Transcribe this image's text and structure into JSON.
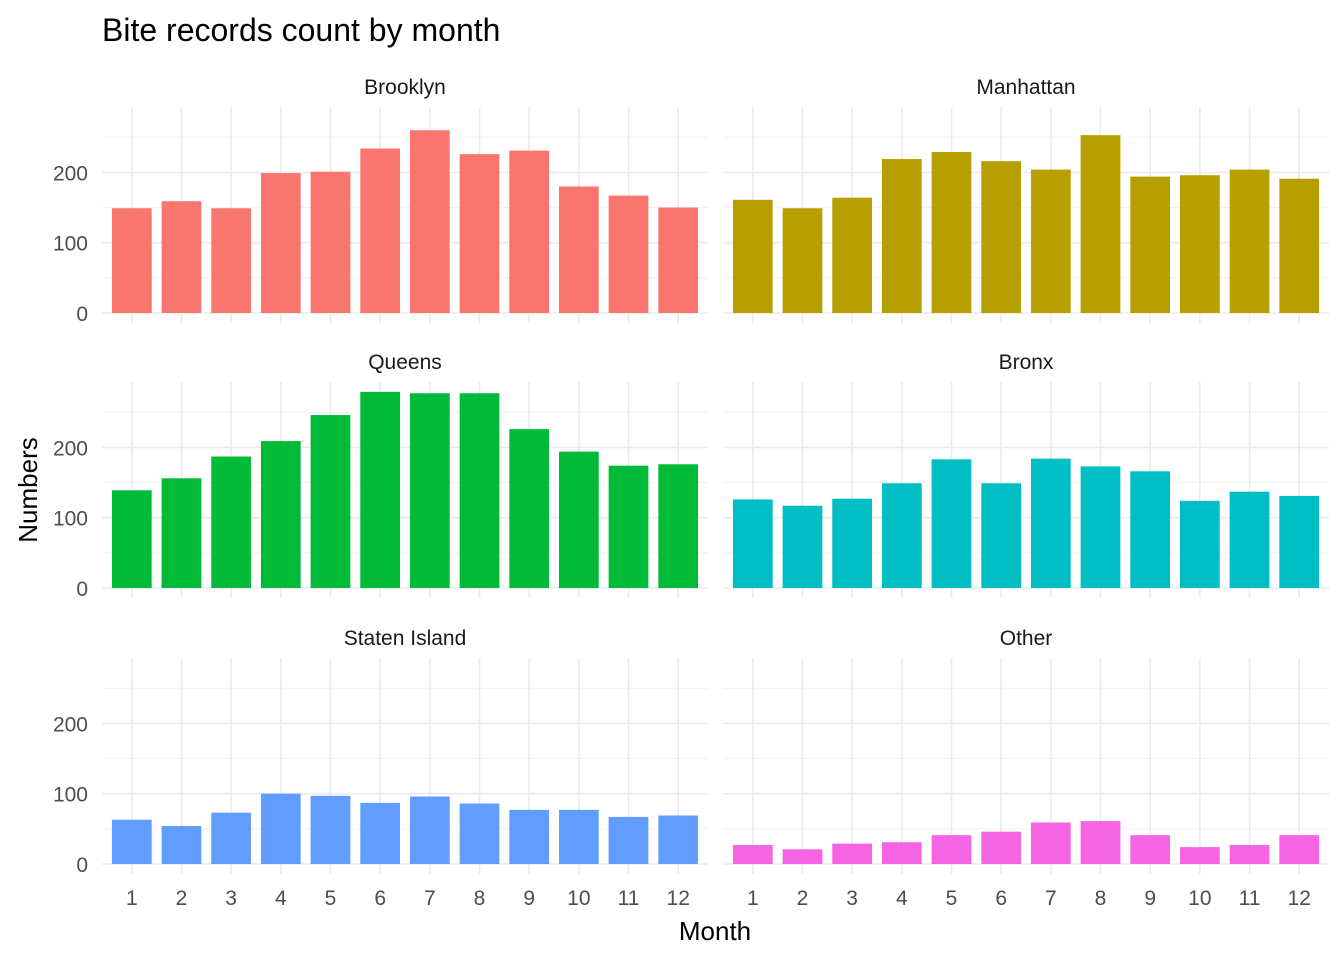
{
  "chart_data": {
    "type": "bar",
    "title": "Bite records count by month",
    "xlabel": "Month",
    "ylabel": "Numbers",
    "ylim": [
      0,
      293
    ],
    "yticks": [
      0,
      100,
      200
    ],
    "grid": true,
    "categories": [
      "1",
      "2",
      "3",
      "4",
      "5",
      "6",
      "7",
      "8",
      "9",
      "10",
      "11",
      "12"
    ],
    "series": [
      {
        "name": "Brooklyn",
        "color": "#F8766D",
        "values": [
          149,
          159,
          149,
          199,
          201,
          234,
          260,
          226,
          231,
          180,
          167,
          150
        ]
      },
      {
        "name": "Manhattan",
        "color": "#B79F00",
        "values": [
          161,
          149,
          164,
          219,
          229,
          216,
          204,
          253,
          194,
          196,
          204,
          191
        ]
      },
      {
        "name": "Queens",
        "color": "#00BA38",
        "values": [
          139,
          156,
          187,
          209,
          246,
          279,
          277,
          277,
          226,
          194,
          174,
          176
        ]
      },
      {
        "name": "Bronx",
        "color": "#00BFC4",
        "values": [
          126,
          117,
          127,
          149,
          183,
          149,
          184,
          173,
          166,
          124,
          137,
          131
        ]
      },
      {
        "name": "Staten Island",
        "color": "#619CFF",
        "values": [
          63,
          54,
          73,
          100,
          97,
          87,
          96,
          86,
          77,
          77,
          67,
          69
        ]
      },
      {
        "name": "Other",
        "color": "#F564E3",
        "values": [
          27,
          21,
          29,
          31,
          41,
          46,
          59,
          61,
          41,
          24,
          27,
          41
        ]
      }
    ]
  }
}
